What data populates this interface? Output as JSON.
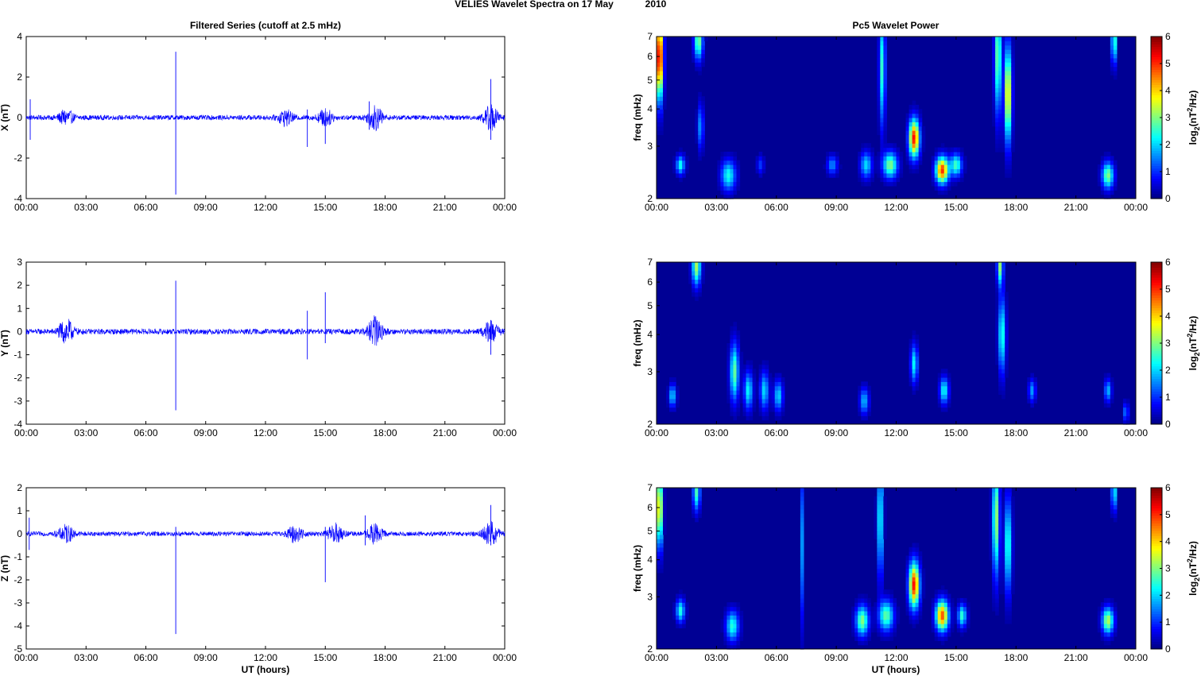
{
  "figure": {
    "suptitle": "VELIES Wavelet Spectra on 17 May",
    "suptitle_year": "2010",
    "left_title": "Filtered Series (cutoff at 2.5 mHz)",
    "right_title": "Pc5 Wavelet Power",
    "xlabel": "UT (hours)",
    "spec_ylabel": "freq (mHz)",
    "cbar_label": "log2(nT2/Hz)",
    "cbar_label_main": "log",
    "cbar_label_sub": "2",
    "cbar_label_open": "(nT",
    "cbar_label_sup": "2",
    "cbar_label_close": "/Hz)",
    "x_ticks": [
      "00:00",
      "03:00",
      "06:00",
      "09:00",
      "12:00",
      "15:00",
      "18:00",
      "21:00",
      "00:00"
    ],
    "spec_y_ticks": [
      "2",
      "3",
      "4",
      "5",
      "6",
      "7"
    ],
    "cbar_ticks": [
      "0",
      "1",
      "2",
      "3",
      "4",
      "5",
      "6"
    ]
  },
  "chart_data": [
    {
      "type": "line",
      "ylabel": "X (nT)",
      "ylim": [
        -4,
        4
      ],
      "yticks": [
        "4",
        "2",
        "0",
        "-2",
        "-4"
      ],
      "xlim_hours": [
        0,
        24
      ],
      "noise_amplitude": 0.12,
      "spikes": [
        {
          "t": 7.5,
          "max": 3.25,
          "min": -3.8
        },
        {
          "t": 0.2,
          "max": 0.9,
          "min": -1.1
        },
        {
          "t": 14.1,
          "max": 0.4,
          "min": -1.45
        },
        {
          "t": 15.0,
          "max": 0.3,
          "min": -1.3
        },
        {
          "t": 17.2,
          "max": 0.8,
          "min": -0.6
        },
        {
          "t": 23.3,
          "max": 1.9,
          "min": -1.1
        }
      ],
      "bursts": [
        [
          2.0,
          0.35
        ],
        [
          13.0,
          0.35
        ],
        [
          15.0,
          0.4
        ],
        [
          17.5,
          0.55
        ],
        [
          23.3,
          0.6
        ]
      ]
    },
    {
      "type": "line",
      "ylabel": "Y (nT)",
      "ylim": [
        -4,
        3
      ],
      "yticks": [
        "3",
        "2",
        "1",
        "0",
        "-1",
        "-2",
        "-3",
        "-4"
      ],
      "xlim_hours": [
        0,
        24
      ],
      "noise_amplitude": 0.12,
      "spikes": [
        {
          "t": 7.5,
          "max": 2.2,
          "min": -3.4
        },
        {
          "t": 14.1,
          "max": 0.9,
          "min": -1.2
        },
        {
          "t": 15.0,
          "max": 1.7,
          "min": -0.5
        },
        {
          "t": 23.3,
          "max": 0.5,
          "min": -1.0
        }
      ],
      "bursts": [
        [
          2.0,
          0.5
        ],
        [
          17.5,
          0.6
        ],
        [
          23.3,
          0.4
        ]
      ]
    },
    {
      "type": "line",
      "ylabel": "Z (nT)",
      "ylim": [
        -5,
        2
      ],
      "yticks": [
        "2",
        "1",
        "0",
        "-1",
        "-2",
        "-3",
        "-4",
        "-5"
      ],
      "xlim_hours": [
        0,
        24
      ],
      "noise_amplitude": 0.1,
      "spikes": [
        {
          "t": 7.5,
          "max": 0.3,
          "min": -4.35
        },
        {
          "t": 15.0,
          "max": 0.3,
          "min": -2.1
        },
        {
          "t": 0.15,
          "max": 0.7,
          "min": -0.7
        },
        {
          "t": 17.0,
          "max": 0.8,
          "min": -0.5
        },
        {
          "t": 23.3,
          "max": 1.25,
          "min": -0.5
        }
      ],
      "bursts": [
        [
          2.0,
          0.35
        ],
        [
          13.5,
          0.35
        ],
        [
          15.5,
          0.4
        ],
        [
          17.5,
          0.4
        ],
        [
          23.3,
          0.5
        ]
      ]
    },
    {
      "type": "heatmap",
      "ylabel": "freq (mHz)",
      "ylim_mhz": [
        2,
        7
      ],
      "yscale": "log",
      "clim": [
        0,
        6
      ],
      "colormap": "jet",
      "blobs": [
        {
          "t": 0.15,
          "f": 6.0,
          "sf": 0.22,
          "st": 0.12,
          "v": 6
        },
        {
          "t": 1.2,
          "f": 2.6,
          "sf": 0.05,
          "st": 0.15,
          "v": 2.3
        },
        {
          "t": 2.1,
          "f": 6.8,
          "sf": 0.1,
          "st": 0.15,
          "v": 3
        },
        {
          "t": 2.2,
          "f": 3.5,
          "sf": 0.12,
          "st": 0.1,
          "v": 1.6
        },
        {
          "t": 3.6,
          "f": 2.4,
          "sf": 0.08,
          "st": 0.25,
          "v": 2.3
        },
        {
          "t": 5.2,
          "f": 2.6,
          "sf": 0.05,
          "st": 0.12,
          "v": 1.0
        },
        {
          "t": 8.8,
          "f": 2.6,
          "sf": 0.05,
          "st": 0.18,
          "v": 1.5
        },
        {
          "t": 10.5,
          "f": 2.6,
          "sf": 0.07,
          "st": 0.2,
          "v": 2.0
        },
        {
          "t": 11.7,
          "f": 2.6,
          "sf": 0.07,
          "st": 0.25,
          "v": 3.0
        },
        {
          "t": 11.3,
          "f": 5.5,
          "sf": 0.3,
          "st": 0.1,
          "v": 2.5
        },
        {
          "t": 12.9,
          "f": 3.2,
          "sf": 0.1,
          "st": 0.18,
          "v": 5.2
        },
        {
          "t": 14.3,
          "f": 2.5,
          "sf": 0.07,
          "st": 0.22,
          "v": 5.0
        },
        {
          "t": 15.0,
          "f": 2.6,
          "sf": 0.06,
          "st": 0.2,
          "v": 2.6
        },
        {
          "t": 17.1,
          "f": 6.0,
          "sf": 0.3,
          "st": 0.12,
          "v": 3.0
        },
        {
          "t": 17.6,
          "f": 4.5,
          "sf": 0.25,
          "st": 0.12,
          "v": 4.2
        },
        {
          "t": 22.6,
          "f": 2.4,
          "sf": 0.07,
          "st": 0.2,
          "v": 3.0
        },
        {
          "t": 22.9,
          "f": 6.8,
          "sf": 0.12,
          "st": 0.08,
          "v": 3.0
        }
      ]
    },
    {
      "type": "heatmap",
      "ylabel": "freq (mHz)",
      "ylim_mhz": [
        2,
        7
      ],
      "yscale": "log",
      "clim": [
        0,
        6
      ],
      "colormap": "jet",
      "blobs": [
        {
          "t": 0.8,
          "f": 2.5,
          "sf": 0.06,
          "st": 0.12,
          "v": 2.0
        },
        {
          "t": 2.0,
          "f": 6.8,
          "sf": 0.1,
          "st": 0.15,
          "v": 3.2
        },
        {
          "t": 3.9,
          "f": 3.0,
          "sf": 0.15,
          "st": 0.15,
          "v": 2.8
        },
        {
          "t": 4.6,
          "f": 2.6,
          "sf": 0.1,
          "st": 0.15,
          "v": 2.2
        },
        {
          "t": 5.4,
          "f": 2.6,
          "sf": 0.1,
          "st": 0.15,
          "v": 2.0
        },
        {
          "t": 6.1,
          "f": 2.5,
          "sf": 0.08,
          "st": 0.15,
          "v": 2.0
        },
        {
          "t": 10.4,
          "f": 2.4,
          "sf": 0.07,
          "st": 0.15,
          "v": 1.8
        },
        {
          "t": 12.9,
          "f": 3.2,
          "sf": 0.1,
          "st": 0.12,
          "v": 2.2
        },
        {
          "t": 14.4,
          "f": 2.6,
          "sf": 0.07,
          "st": 0.15,
          "v": 2.3
        },
        {
          "t": 17.3,
          "f": 4.0,
          "sf": 0.2,
          "st": 0.12,
          "v": 2.5
        },
        {
          "t": 17.2,
          "f": 6.8,
          "sf": 0.1,
          "st": 0.1,
          "v": 3.0
        },
        {
          "t": 18.8,
          "f": 2.6,
          "sf": 0.06,
          "st": 0.12,
          "v": 1.6
        },
        {
          "t": 22.6,
          "f": 2.6,
          "sf": 0.06,
          "st": 0.12,
          "v": 1.8
        },
        {
          "t": 23.5,
          "f": 2.2,
          "sf": 0.05,
          "st": 0.08,
          "v": 1.6
        }
      ]
    },
    {
      "type": "heatmap",
      "ylabel": "freq (mHz)",
      "ylim_mhz": [
        2,
        7
      ],
      "yscale": "log",
      "clim": [
        0,
        6
      ],
      "colormap": "jet",
      "blobs": [
        {
          "t": 0.15,
          "f": 6.0,
          "sf": 0.2,
          "st": 0.1,
          "v": 4.5
        },
        {
          "t": 1.2,
          "f": 2.7,
          "sf": 0.06,
          "st": 0.15,
          "v": 2.4
        },
        {
          "t": 2.0,
          "f": 6.8,
          "sf": 0.1,
          "st": 0.12,
          "v": 2.6
        },
        {
          "t": 3.8,
          "f": 2.4,
          "sf": 0.08,
          "st": 0.22,
          "v": 2.4
        },
        {
          "t": 7.3,
          "f": 4.5,
          "sf": 0.4,
          "st": 0.06,
          "v": 1.6
        },
        {
          "t": 10.3,
          "f": 2.5,
          "sf": 0.08,
          "st": 0.22,
          "v": 3.0
        },
        {
          "t": 11.5,
          "f": 2.6,
          "sf": 0.08,
          "st": 0.25,
          "v": 2.8
        },
        {
          "t": 11.2,
          "f": 5.5,
          "sf": 0.3,
          "st": 0.1,
          "v": 2.5
        },
        {
          "t": 12.9,
          "f": 3.3,
          "sf": 0.12,
          "st": 0.18,
          "v": 5.2
        },
        {
          "t": 14.3,
          "f": 2.6,
          "sf": 0.08,
          "st": 0.22,
          "v": 4.8
        },
        {
          "t": 15.3,
          "f": 2.6,
          "sf": 0.06,
          "st": 0.15,
          "v": 2.5
        },
        {
          "t": 17.0,
          "f": 5.5,
          "sf": 0.3,
          "st": 0.12,
          "v": 3.2
        },
        {
          "t": 17.6,
          "f": 4.5,
          "sf": 0.25,
          "st": 0.12,
          "v": 2.6
        },
        {
          "t": 22.6,
          "f": 2.5,
          "sf": 0.07,
          "st": 0.2,
          "v": 3.3
        },
        {
          "t": 22.9,
          "f": 6.8,
          "sf": 0.1,
          "st": 0.08,
          "v": 2.5
        }
      ]
    }
  ]
}
